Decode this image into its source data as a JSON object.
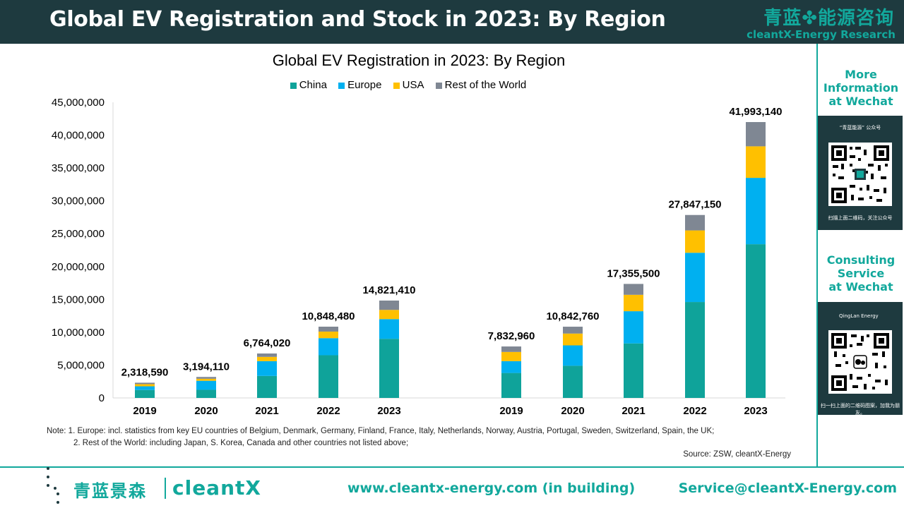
{
  "header": {
    "title": "Global EV Registration and Stock in 2023: By Region",
    "brand_cn": "青蓝✤能源咨询",
    "brand_en": "cleantX-Energy Research"
  },
  "sidebar": {
    "more_info": [
      "More",
      "Information",
      "at Wechat"
    ],
    "qr1_caption_top": "“青蓝能源” 公众号",
    "qr1_caption_bottom": "扫描上面二维码，关注公众号",
    "consulting": [
      "Consulting",
      "Service",
      "at Wechat"
    ],
    "qr2_caption_top": "QingLan Energy",
    "qr2_caption_bottom": "扫一扫上面的二维码图案，加我为朋友。"
  },
  "colors": {
    "China": "#0fa39a",
    "Europe": "#00b0f0",
    "USA": "#ffc000",
    "Rest of the World": "#7f8793",
    "accent": "#12a89c",
    "header_bg": "#1e3a3f"
  },
  "chart_data": {
    "type": "bar",
    "stacked": true,
    "title": "Global EV Registration in 2023: By Region",
    "legend_position": "top",
    "ylim": [
      0,
      45000000
    ],
    "yticks": [
      "0",
      "5,000,000",
      "10,000,000",
      "15,000,000",
      "20,000,000",
      "25,000,000",
      "30,000,000",
      "35,000,000",
      "40,000,000",
      "45,000,000"
    ],
    "groups": [
      {
        "categories": [
          "2019",
          "2020",
          "2021",
          "2022",
          "2023"
        ],
        "totals": [
          2318590,
          3194110,
          6764020,
          10848480,
          14821410
        ],
        "total_labels": [
          "2,318,590",
          "3,194,110",
          "6,764,020",
          "10,848,480",
          "14,821,410"
        ],
        "series": [
          {
            "name": "China",
            "values": [
              1210000,
              1240000,
              3350000,
              6500000,
              9000000
            ]
          },
          {
            "name": "Europe",
            "values": [
              560000,
              1370000,
              2250000,
              2600000,
              3000000
            ]
          },
          {
            "name": "USA",
            "values": [
              330000,
              310000,
              650000,
              1000000,
              1400000
            ]
          },
          {
            "name": "Rest of the World",
            "values": [
              218590,
              274110,
              514020,
              748480,
              1421410
            ]
          }
        ]
      },
      {
        "categories": [
          "2019",
          "2020",
          "2021",
          "2022",
          "2023"
        ],
        "totals": [
          7832960,
          10842760,
          17355500,
          27847150,
          41993140
        ],
        "total_labels": [
          "7,832,960",
          "10,842,760",
          "17,355,500",
          "27,847,150",
          "41,993,140"
        ],
        "series": [
          {
            "name": "China",
            "values": [
              3800000,
              4900000,
              8300000,
              14600000,
              23400000
            ]
          },
          {
            "name": "Europe",
            "values": [
              1800000,
              3100000,
              4900000,
              7500000,
              10100000
            ]
          },
          {
            "name": "USA",
            "values": [
              1400000,
              1800000,
              2500000,
              3400000,
              4800000
            ]
          },
          {
            "name": "Rest of the World",
            "values": [
              832960,
              1042760,
              1655500,
              2347150,
              3693140
            ]
          }
        ]
      }
    ]
  },
  "notes": [
    "Note: 1. Europe: incl. statistics from key EU countries of Belgium, Denmark, Germany, Finland, France, Italy, Netherlands, Norway, Austria, Portugal, Sweden, Switzerland, Spain, the UK;",
    "2. Rest of the World: including Japan, S. Korea, Canada and other countries not listed above;"
  ],
  "source": "Source: ZSW, cleantX-Energy",
  "footer": {
    "logo_cn": "青蓝景森",
    "logo_en": "cleantX",
    "website": "www.cleantx-energy.com (in building)",
    "email": "Service@cleantX-Energy.com"
  }
}
